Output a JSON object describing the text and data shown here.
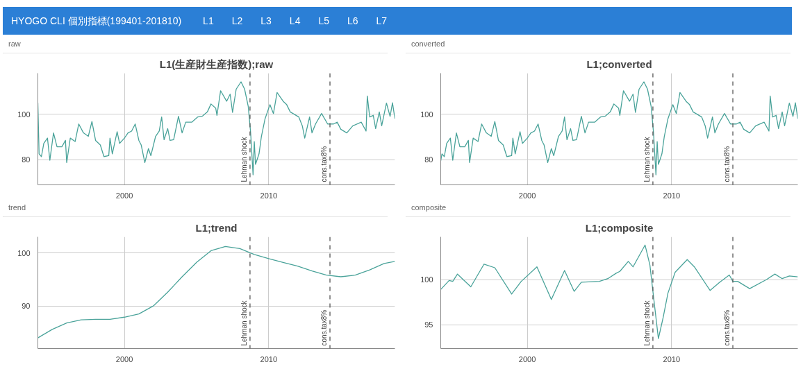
{
  "chart_data": [
    {
      "type": "other",
      "title": "HYOGO CLI 個別指標(199401-201810)",
      "annotations": [
        "L1",
        "L2",
        "L3",
        "L4",
        "L5",
        "L6",
        "L7"
      ]
    },
    {
      "type": "line",
      "subtitle": "raw",
      "title": "L1(生産財生産指数);raw",
      "xlim": [
        "1994-01",
        "2018-10"
      ],
      "xticks": [
        {
          "value": "2000-01",
          "label": "2000"
        },
        {
          "value": "2010-01",
          "label": "2010"
        }
      ],
      "ylim": [
        69,
        118
      ],
      "yticks": [
        80,
        100
      ],
      "grid": true,
      "ref_lines": [
        {
          "axis": "x",
          "value": "2008-09-15",
          "label": "Lehman shock",
          "color": "#555555",
          "line_style": "dashed"
        },
        {
          "axis": "x",
          "value": "2014-04-01",
          "label": "cons.tax8%",
          "color": "#555555",
          "line_style": "dashed"
        }
      ],
      "series": [
        {
          "color": "#4aa39a",
          "x": [
            "1994-01",
            "1994-02",
            "1994-04",
            "1994-06",
            "1994-09",
            "1994-11",
            "1995-02",
            "1995-05",
            "1995-09",
            "1995-12",
            "1996-01",
            "1996-04",
            "1996-08",
            "1996-11",
            "1997-03",
            "1997-07",
            "1997-10",
            "1998-01",
            "1998-05",
            "1998-08",
            "1998-12",
            "1999-01",
            "1999-03",
            "1999-07",
            "1999-09",
            "2000-01",
            "2000-04",
            "2000-07",
            "2000-10",
            "2001-01",
            "2001-03",
            "2001-06",
            "2001-09",
            "2001-11",
            "2002-03",
            "2002-06",
            "2002-08",
            "2002-10",
            "2003-01",
            "2003-03",
            "2003-06",
            "2003-10",
            "2004-01",
            "2004-04",
            "2004-09",
            "2005-02",
            "2005-06",
            "2005-10",
            "2006-01",
            "2006-05",
            "2006-06",
            "2006-09",
            "2007-02",
            "2007-05",
            "2007-07",
            "2007-10",
            "2008-02",
            "2008-05",
            "2008-08",
            "2008-10",
            "2008-12",
            "2009-01",
            "2009-02",
            "2009-05",
            "2009-07",
            "2009-10",
            "2010-02",
            "2010-05",
            "2010-08",
            "2011-01",
            "2011-04",
            "2011-07",
            "2012-02",
            "2012-05",
            "2012-07",
            "2012-11",
            "2013-01",
            "2013-04",
            "2013-09",
            "2014-02",
            "2014-07",
            "2014-10",
            "2015-01",
            "2015-06",
            "2015-11",
            "2016-06",
            "2016-10",
            "2016-11",
            "2017-01",
            "2017-04",
            "2017-06",
            "2017-09",
            "2017-11",
            "2018-03",
            "2018-06",
            "2018-08",
            "2018-10"
          ],
          "values": [
            105,
            82.6,
            81.4,
            87.2,
            89.5,
            79.8,
            91.8,
            85.7,
            85.7,
            88.5,
            78.8,
            89.5,
            88,
            95.7,
            91.8,
            90.3,
            96.8,
            88.5,
            86.5,
            81.4,
            81.8,
            89.5,
            82.6,
            92.3,
            87.2,
            89.5,
            91.8,
            92.6,
            95.7,
            88.5,
            86.5,
            78.8,
            84.9,
            81.8,
            90.3,
            92.6,
            98.8,
            88.8,
            93.7,
            88.5,
            88.8,
            99.1,
            91.8,
            96.5,
            96.5,
            98.8,
            99.2,
            101,
            104.5,
            102.6,
            99.5,
            110.3,
            105.7,
            108.8,
            100.8,
            111,
            114.2,
            111,
            103.4,
            91.8,
            73.4,
            88,
            78,
            82.6,
            90.3,
            98,
            104.2,
            100.3,
            109.5,
            105.7,
            104.2,
            101,
            98.8,
            94.9,
            89.5,
            98.8,
            91.8,
            95.7,
            100.3,
            95.7,
            95.7,
            96.5,
            93.4,
            91.8,
            94.9,
            96.5,
            92.6,
            108,
            98.8,
            99.5,
            93.7,
            101,
            94.9,
            104.9,
            99,
            105,
            98
          ]
        }
      ]
    },
    {
      "type": "line",
      "subtitle": "converted",
      "title": "L1;converted",
      "xlim": [
        "1994-01",
        "2018-10"
      ],
      "xticks": [
        {
          "value": "2000-01",
          "label": "2000"
        },
        {
          "value": "2010-01",
          "label": "2010"
        }
      ],
      "ylim": [
        69,
        118
      ],
      "yticks": [
        80,
        100
      ],
      "grid": true,
      "ref_lines": [
        {
          "axis": "x",
          "value": "2008-09-15",
          "label": "Lehman shock",
          "color": "#555555",
          "line_style": "dashed"
        },
        {
          "axis": "x",
          "value": "2014-04-01",
          "label": "cons.tax8%",
          "color": "#555555",
          "line_style": "dashed"
        }
      ],
      "series": [
        {
          "color": "#4aa39a",
          "x": [
            "1994-01",
            "1994-02",
            "1994-04",
            "1994-06",
            "1994-09",
            "1994-11",
            "1995-02",
            "1995-05",
            "1995-09",
            "1995-12",
            "1996-01",
            "1996-04",
            "1996-08",
            "1996-11",
            "1997-03",
            "1997-07",
            "1997-10",
            "1998-01",
            "1998-05",
            "1998-08",
            "1998-12",
            "1999-01",
            "1999-03",
            "1999-07",
            "1999-09",
            "2000-01",
            "2000-04",
            "2000-07",
            "2000-10",
            "2001-01",
            "2001-03",
            "2001-06",
            "2001-09",
            "2001-11",
            "2002-03",
            "2002-06",
            "2002-08",
            "2002-10",
            "2003-01",
            "2003-03",
            "2003-06",
            "2003-10",
            "2004-01",
            "2004-04",
            "2004-09",
            "2005-02",
            "2005-06",
            "2005-10",
            "2006-01",
            "2006-05",
            "2006-06",
            "2006-09",
            "2007-02",
            "2007-05",
            "2007-07",
            "2007-10",
            "2008-02",
            "2008-05",
            "2008-08",
            "2008-10",
            "2008-12",
            "2009-01",
            "2009-02",
            "2009-05",
            "2009-07",
            "2009-10",
            "2010-02",
            "2010-05",
            "2010-08",
            "2011-01",
            "2011-04",
            "2011-07",
            "2012-02",
            "2012-05",
            "2012-07",
            "2012-11",
            "2013-01",
            "2013-04",
            "2013-09",
            "2014-02",
            "2014-07",
            "2014-10",
            "2015-01",
            "2015-06",
            "2015-11",
            "2016-06",
            "2016-10",
            "2016-11",
            "2017-01",
            "2017-04",
            "2017-06",
            "2017-09",
            "2017-11",
            "2018-03",
            "2018-06",
            "2018-08",
            "2018-10"
          ],
          "values": [
            79.5,
            82.6,
            81.4,
            87.2,
            89.5,
            79.8,
            91.8,
            85.7,
            85.7,
            88.5,
            78.8,
            89.5,
            88,
            95.7,
            91.8,
            90.3,
            96.8,
            88.5,
            86.5,
            81.4,
            81.8,
            89.5,
            82.6,
            92.3,
            87.2,
            89.5,
            91.8,
            92.6,
            95.7,
            88.5,
            86.5,
            78.8,
            84.9,
            81.8,
            90.3,
            92.6,
            98.8,
            88.8,
            93.7,
            88.5,
            88.8,
            99.1,
            91.8,
            96.5,
            96.5,
            98.8,
            99.2,
            101,
            104.5,
            102.6,
            99.5,
            110.3,
            105.7,
            108.8,
            100.8,
            111,
            114.2,
            111,
            103.4,
            91.8,
            73.4,
            88,
            78,
            82.6,
            90.3,
            98,
            104.2,
            100.3,
            109.5,
            105.7,
            104.2,
            101,
            98.8,
            94.9,
            89.5,
            98.8,
            91.8,
            95.7,
            100.3,
            95.7,
            95.7,
            96.5,
            93.4,
            91.8,
            94.9,
            96.5,
            92.6,
            108,
            98.8,
            99.5,
            93.7,
            101,
            94.9,
            104.9,
            99,
            105,
            98
          ]
        }
      ]
    },
    {
      "type": "line",
      "subtitle": "trend",
      "title": "L1;trend",
      "xlim": [
        "1994-01",
        "2018-10"
      ],
      "xticks": [
        {
          "value": "2000-01",
          "label": "2000"
        },
        {
          "value": "2010-01",
          "label": "2010"
        }
      ],
      "ylim": [
        82,
        103
      ],
      "yticks": [
        90,
        100
      ],
      "grid": true,
      "ref_lines": [
        {
          "axis": "x",
          "value": "2008-09-15",
          "label": "Lehman shock",
          "color": "#555555",
          "line_style": "dashed"
        },
        {
          "axis": "x",
          "value": "2014-04-01",
          "label": "cons.tax8%",
          "color": "#555555",
          "line_style": "dashed"
        }
      ],
      "series": [
        {
          "color": "#4aa39a",
          "x": [
            "1994-01",
            "1995-01",
            "1996-01",
            "1997-01",
            "1998-01",
            "1999-01",
            "2000-01",
            "2001-01",
            "2002-01",
            "2003-01",
            "2004-01",
            "2005-01",
            "2006-01",
            "2007-01",
            "2008-01",
            "2009-01",
            "2010-01",
            "2011-01",
            "2012-01",
            "2013-01",
            "2014-01",
            "2015-01",
            "2016-01",
            "2017-01",
            "2018-01",
            "2018-10"
          ],
          "values": [
            84,
            85.6,
            86.8,
            87.4,
            87.5,
            87.5,
            87.9,
            88.5,
            90,
            92.6,
            95.5,
            98.2,
            100.4,
            101.2,
            100.8,
            99.7,
            98.9,
            98.2,
            97.5,
            96.6,
            95.8,
            95.5,
            95.8,
            96.8,
            98,
            98.4
          ]
        }
      ]
    },
    {
      "type": "line",
      "subtitle": "composite",
      "title": "L1;composite",
      "xlim": [
        "1994-01",
        "2018-10"
      ],
      "xticks": [
        {
          "value": "2000-01",
          "label": "2000"
        },
        {
          "value": "2010-01",
          "label": "2010"
        }
      ],
      "ylim": [
        92.4,
        104.7
      ],
      "yticks": [
        95,
        100
      ],
      "grid": true,
      "ref_lines": [
        {
          "axis": "x",
          "value": "2008-09-15",
          "label": "Lehman shock",
          "color": "#555555",
          "line_style": "dashed"
        },
        {
          "axis": "x",
          "value": "2014-04-01",
          "label": "cons.tax8%",
          "color": "#555555",
          "line_style": "dashed"
        }
      ],
      "series": [
        {
          "color": "#4aa39a",
          "x": [
            "1994-01",
            "1994-08",
            "1994-11",
            "1995-03",
            "1996-02",
            "1997-01",
            "1997-10",
            "1998-12",
            "1999-08",
            "2000-09",
            "2001-09",
            "2002-08",
            "2003-04",
            "2003-10",
            "2005-01",
            "2005-08",
            "2006-03",
            "2006-06",
            "2007-01",
            "2007-05",
            "2008-03",
            "2008-07",
            "2008-10",
            "2009-02",
            "2009-06",
            "2009-10",
            "2010-04",
            "2011-02",
            "2011-08",
            "2012-09",
            "2013-05",
            "2014-01",
            "2014-04",
            "2014-08",
            "2015-06",
            "2016-08",
            "2017-03",
            "2017-09",
            "2018-03",
            "2018-10"
          ],
          "values": [
            98.9,
            99.9,
            99.8,
            100.6,
            99.2,
            101.7,
            101.3,
            98.4,
            99.8,
            101.4,
            97.8,
            101,
            98.7,
            99.7,
            99.8,
            100.1,
            100.7,
            100.9,
            102,
            101.4,
            103.8,
            101.6,
            98.1,
            93.5,
            95.8,
            98.5,
            100.8,
            102.2,
            101.4,
            98.8,
            99.7,
            100.5,
            99.8,
            99.8,
            99,
            100,
            100.6,
            100.1,
            100.4,
            100.3
          ]
        }
      ]
    }
  ]
}
